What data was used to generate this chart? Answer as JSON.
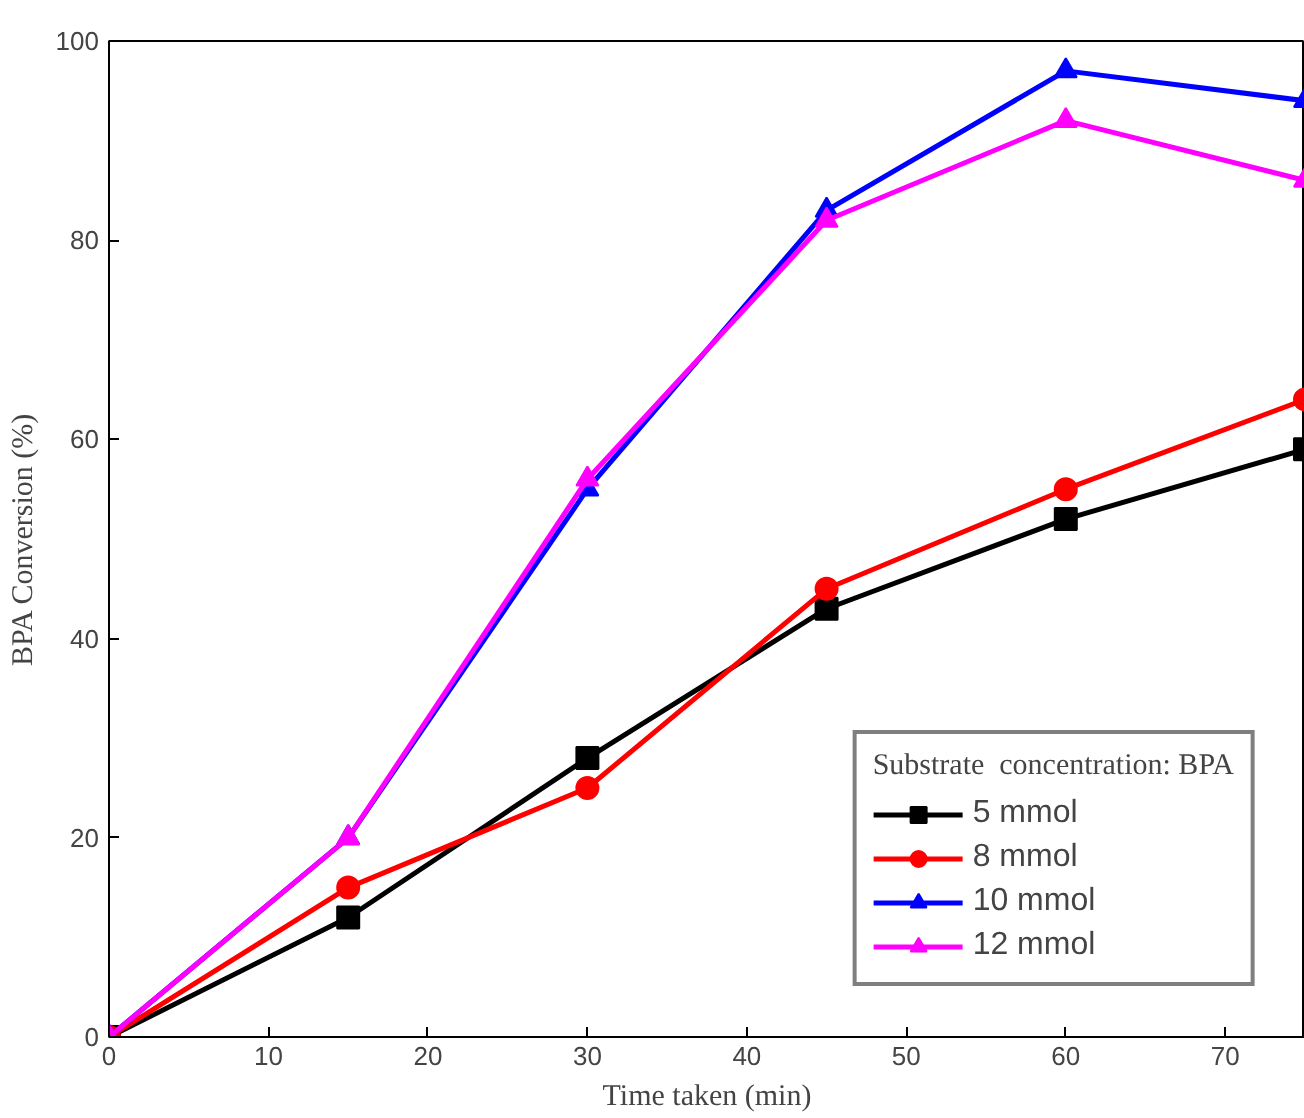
{
  "chart_data": {
    "type": "line",
    "xlabel": "Time taken (min)",
    "ylabel": "BPA Conversion (%)",
    "legend_title": "Substrate  concentration: BPA",
    "x": [
      0,
      15,
      30,
      45,
      60,
      75
    ],
    "xlim": [
      0,
      75
    ],
    "ylim": [
      0,
      100
    ],
    "xticks": [
      0,
      10,
      20,
      30,
      40,
      50,
      60,
      70
    ],
    "yticks": [
      0,
      20,
      40,
      60,
      80,
      100
    ],
    "grid": false,
    "legend": "bottom right",
    "line_style": "solid",
    "series": [
      {
        "name": "5 mmol",
        "color": "#000000",
        "marker": "square",
        "values": [
          0,
          12,
          28,
          43,
          52,
          59
        ]
      },
      {
        "name": "8 mmol",
        "color": "#ff0000",
        "marker": "circle",
        "values": [
          0,
          15,
          25,
          45,
          55,
          64
        ]
      },
      {
        "name": "10 mmol",
        "color": "#0000ff",
        "marker": "triangle",
        "values": [
          0,
          20,
          55,
          83,
          97,
          94
        ]
      },
      {
        "name": "12 mmol",
        "color": "#ff00ff",
        "marker": "triangle",
        "values": [
          0,
          20,
          56,
          82,
          92,
          86
        ]
      }
    ]
  }
}
